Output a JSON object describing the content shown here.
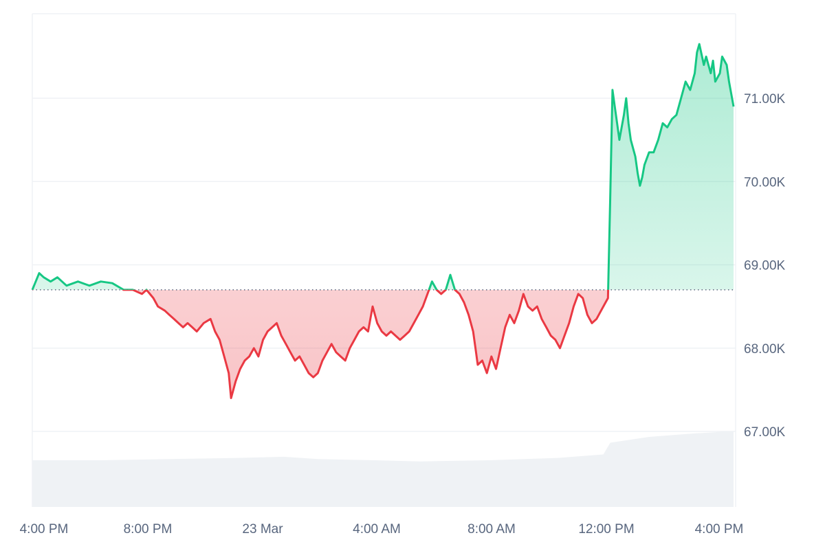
{
  "chart_data": {
    "type": "area",
    "baseline": 68700,
    "ylim": [
      66000,
      72000
    ],
    "y_ticks": [
      67000,
      68000,
      69000,
      70000,
      71000
    ],
    "y_tick_labels": [
      "67.00K",
      "68.00K",
      "69.00K",
      "70.00K",
      "71.00K"
    ],
    "x_range": [
      0,
      288
    ],
    "x_tick_labels": [
      {
        "x": 0,
        "label": "4:00 PM"
      },
      {
        "x": 48,
        "label": "8:00 PM"
      },
      {
        "x": 96,
        "label": "23 Mar"
      },
      {
        "x": 144,
        "label": "4:00 AM"
      },
      {
        "x": 192,
        "label": "8:00 AM"
      },
      {
        "x": 240,
        "label": "12:00 PM"
      },
      {
        "x": 288,
        "label": "4:00 PM"
      }
    ],
    "grid": true,
    "colors": {
      "up": "#16c784",
      "down": "#ea3943",
      "up_fill": "#16c784",
      "down_fill": "#ea3943",
      "grid": "#eff2f5",
      "baseline": "#58667e",
      "volume": "#eff2f5",
      "ticks": "#58667e"
    },
    "price": [
      [
        0,
        68700
      ],
      [
        3,
        68900
      ],
      [
        5,
        68850
      ],
      [
        8,
        68800
      ],
      [
        11,
        68850
      ],
      [
        15,
        68750
      ],
      [
        20,
        68800
      ],
      [
        25,
        68750
      ],
      [
        30,
        68800
      ],
      [
        35,
        68780
      ],
      [
        40,
        68700
      ],
      [
        44,
        68700
      ],
      [
        48,
        68650
      ],
      [
        50,
        68700
      ],
      [
        53,
        68600
      ],
      [
        55,
        68500
      ],
      [
        58,
        68450
      ],
      [
        60,
        68400
      ],
      [
        62,
        68350
      ],
      [
        64,
        68300
      ],
      [
        66,
        68250
      ],
      [
        68,
        68300
      ],
      [
        70,
        68250
      ],
      [
        72,
        68200
      ],
      [
        75,
        68300
      ],
      [
        78,
        68350
      ],
      [
        80,
        68200
      ],
      [
        82,
        68100
      ],
      [
        84,
        67900
      ],
      [
        86,
        67700
      ],
      [
        87,
        67400
      ],
      [
        89,
        67600
      ],
      [
        91,
        67750
      ],
      [
        93,
        67850
      ],
      [
        95,
        67900
      ],
      [
        97,
        68000
      ],
      [
        99,
        67900
      ],
      [
        101,
        68100
      ],
      [
        103,
        68200
      ],
      [
        105,
        68250
      ],
      [
        107,
        68300
      ],
      [
        109,
        68150
      ],
      [
        111,
        68050
      ],
      [
        113,
        67950
      ],
      [
        115,
        67850
      ],
      [
        117,
        67900
      ],
      [
        119,
        67800
      ],
      [
        121,
        67700
      ],
      [
        123,
        67650
      ],
      [
        125,
        67700
      ],
      [
        127,
        67850
      ],
      [
        129,
        67950
      ],
      [
        131,
        68050
      ],
      [
        133,
        67950
      ],
      [
        135,
        67900
      ],
      [
        137,
        67850
      ],
      [
        139,
        68000
      ],
      [
        141,
        68100
      ],
      [
        143,
        68200
      ],
      [
        145,
        68250
      ],
      [
        147,
        68200
      ],
      [
        149,
        68500
      ],
      [
        151,
        68300
      ],
      [
        153,
        68200
      ],
      [
        155,
        68150
      ],
      [
        157,
        68200
      ],
      [
        159,
        68150
      ],
      [
        161,
        68100
      ],
      [
        163,
        68150
      ],
      [
        165,
        68200
      ],
      [
        167,
        68300
      ],
      [
        169,
        68400
      ],
      [
        171,
        68500
      ],
      [
        173,
        68650
      ],
      [
        175,
        68800
      ],
      [
        177,
        68700
      ],
      [
        179,
        68650
      ],
      [
        181,
        68700
      ],
      [
        183,
        68880
      ],
      [
        185,
        68700
      ],
      [
        187,
        68650
      ],
      [
        189,
        68550
      ],
      [
        191,
        68400
      ],
      [
        193,
        68200
      ],
      [
        194,
        68000
      ],
      [
        195,
        67800
      ],
      [
        197,
        67850
      ],
      [
        199,
        67700
      ],
      [
        201,
        67900
      ],
      [
        203,
        67750
      ],
      [
        205,
        68000
      ],
      [
        207,
        68250
      ],
      [
        209,
        68400
      ],
      [
        211,
        68300
      ],
      [
        213,
        68450
      ],
      [
        215,
        68650
      ],
      [
        217,
        68500
      ],
      [
        219,
        68450
      ],
      [
        221,
        68500
      ],
      [
        223,
        68350
      ],
      [
        225,
        68250
      ],
      [
        227,
        68150
      ],
      [
        229,
        68100
      ],
      [
        231,
        68000
      ],
      [
        233,
        68150
      ],
      [
        235,
        68300
      ],
      [
        237,
        68500
      ],
      [
        239,
        68650
      ],
      [
        241,
        68600
      ],
      [
        243,
        68400
      ],
      [
        245,
        68300
      ],
      [
        247,
        68350
      ],
      [
        249,
        68450
      ],
      [
        251,
        68550
      ],
      [
        252,
        68600
      ],
      [
        253,
        69800
      ],
      [
        254,
        71100
      ],
      [
        255,
        70900
      ],
      [
        256,
        70700
      ],
      [
        257,
        70500
      ],
      [
        259,
        70800
      ],
      [
        260,
        71000
      ],
      [
        261,
        70700
      ],
      [
        262,
        70500
      ],
      [
        263,
        70400
      ],
      [
        264,
        70300
      ],
      [
        265,
        70100
      ],
      [
        266,
        69950
      ],
      [
        267,
        70050
      ],
      [
        268,
        70200
      ],
      [
        270,
        70350
      ],
      [
        272,
        70350
      ],
      [
        274,
        70500
      ],
      [
        276,
        70700
      ],
      [
        278,
        70650
      ],
      [
        280,
        70750
      ],
      [
        282,
        70800
      ],
      [
        284,
        71000
      ],
      [
        286,
        71200
      ],
      [
        288,
        71100
      ],
      [
        290,
        71300
      ],
      [
        291,
        71550
      ],
      [
        292,
        71650
      ],
      [
        294,
        71400
      ],
      [
        295,
        71500
      ],
      [
        297,
        71300
      ],
      [
        298,
        71450
      ],
      [
        299,
        71200
      ],
      [
        301,
        71300
      ],
      [
        302,
        71500
      ],
      [
        304,
        71400
      ],
      [
        305,
        71200
      ],
      [
        306,
        71050
      ],
      [
        307,
        70900
      ]
    ],
    "volume": [
      [
        0,
        0.4
      ],
      [
        30,
        0.4
      ],
      [
        60,
        0.41
      ],
      [
        90,
        0.42
      ],
      [
        110,
        0.43
      ],
      [
        125,
        0.41
      ],
      [
        150,
        0.4
      ],
      [
        170,
        0.39
      ],
      [
        200,
        0.4
      ],
      [
        230,
        0.42
      ],
      [
        250,
        0.45
      ],
      [
        253,
        0.55
      ],
      [
        270,
        0.6
      ],
      [
        290,
        0.63
      ],
      [
        307,
        0.65
      ]
    ]
  }
}
